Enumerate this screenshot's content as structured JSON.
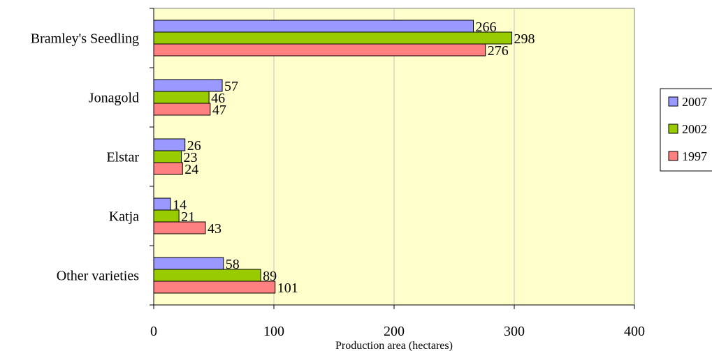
{
  "chart_data": {
    "type": "bar",
    "orientation": "horizontal",
    "categories": [
      "Bramley's Seedling",
      "Jonagold",
      "Elstar",
      "Katja",
      "Other varieties"
    ],
    "series": [
      {
        "name": "2007",
        "values": [
          266,
          57,
          26,
          14,
          58
        ],
        "color": "#9999FF"
      },
      {
        "name": "2002",
        "values": [
          298,
          46,
          23,
          21,
          89
        ],
        "color": "#99CC00"
      },
      {
        "name": "1997",
        "values": [
          276,
          47,
          24,
          43,
          101
        ],
        "color": "#FF8080"
      }
    ],
    "xlabel": "Production area (hectares)",
    "ylabel": "",
    "title": "",
    "xlim": [
      0,
      400
    ],
    "xticks": [
      0,
      100,
      200,
      300,
      400
    ],
    "grid": "vertical",
    "legend_position": "right",
    "plot_background": "#FFFFCC"
  }
}
